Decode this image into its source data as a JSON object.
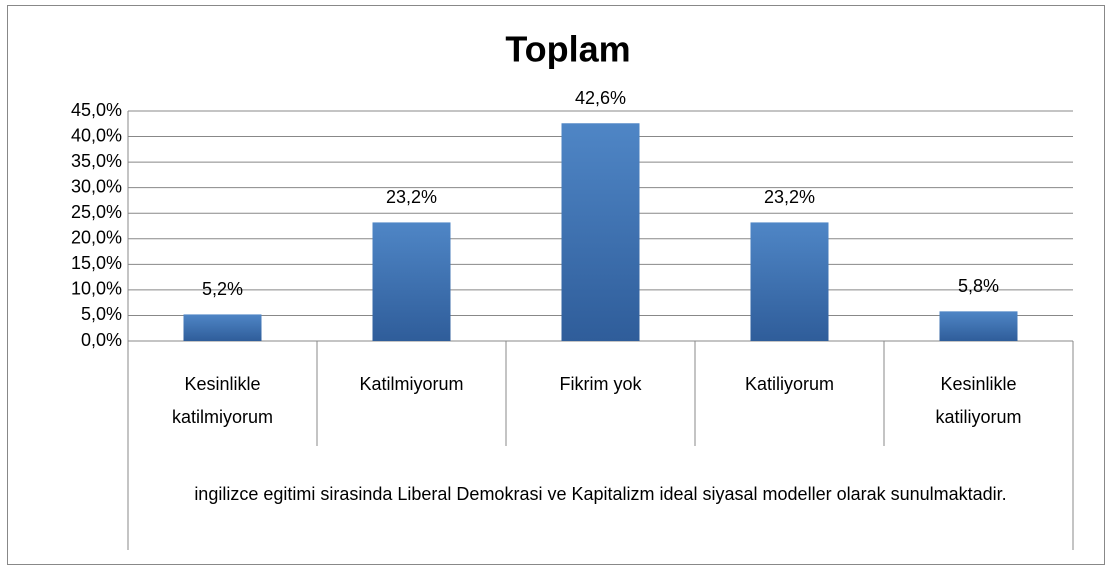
{
  "chart_data": {
    "type": "bar",
    "title": "Toplam",
    "categories": [
      "Kesinlikle katilmiyorum",
      "Katilmiyorum",
      "Fikrim yok",
      "Katiliyorum",
      "Kesinlikle katiliyorum"
    ],
    "group_label": "ingilizce egitimi sirasinda Liberal Demokrasi ve Kapitalizm ideal siyasal modeller olarak sunulmaktadir.",
    "values": [
      5.2,
      23.2,
      42.6,
      23.2,
      5.8
    ],
    "value_labels": [
      "5,2%",
      "23,2%",
      "42,6%",
      "23,2%",
      "5,8%"
    ],
    "color": "#4a7ebb",
    "ylim": [
      0,
      45
    ],
    "yticks": [
      {
        "value": 0,
        "label": "0,0%"
      },
      {
        "value": 5,
        "label": "5,0%"
      },
      {
        "value": 10,
        "label": "10,0%"
      },
      {
        "value": 15,
        "label": "15,0%"
      },
      {
        "value": 20,
        "label": "20,0%"
      },
      {
        "value": 25,
        "label": "25,0%"
      },
      {
        "value": 30,
        "label": "30,0%"
      },
      {
        "value": 35,
        "label": "35,0%"
      },
      {
        "value": 40,
        "label": "40,0%"
      },
      {
        "value": 45,
        "label": "45,0%"
      }
    ],
    "grid": true
  }
}
